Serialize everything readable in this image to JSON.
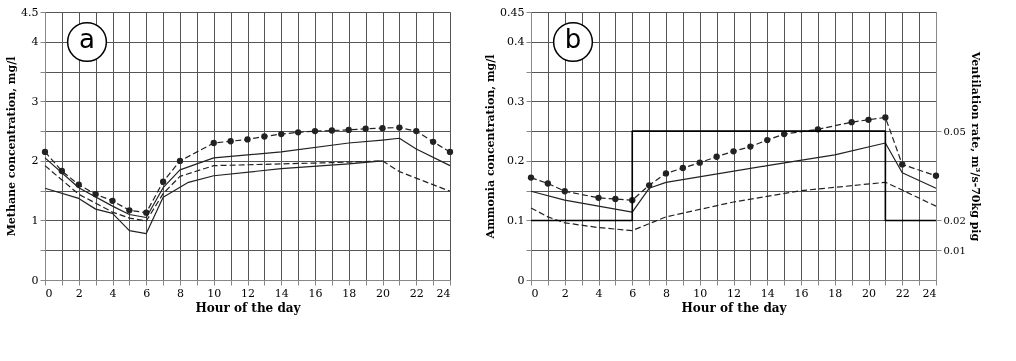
{
  "chart_data": [
    {
      "type": "line",
      "xlabel": "Hour of the day",
      "ylabel": "Methane concentration, mg/l",
      "annotations": [
        "a"
      ],
      "grid": true,
      "xlim": [
        0,
        24
      ],
      "ylim": [
        0,
        4.5
      ],
      "xticks": [
        0,
        {
          "value": 1,
          "label": null
        },
        2,
        {
          "value": 3,
          "label": null
        },
        4,
        {
          "value": 5,
          "label": null
        },
        6,
        {
          "value": 7,
          "label": null
        },
        8,
        {
          "value": 9,
          "label": null
        },
        10,
        {
          "value": 11,
          "label": null
        },
        12,
        {
          "value": 13,
          "label": null
        },
        14,
        {
          "value": 15,
          "label": null
        },
        16,
        {
          "value": 17,
          "label": null
        },
        18,
        {
          "value": 19,
          "label": null
        },
        20,
        {
          "value": 21,
          "label": null
        },
        22,
        {
          "value": 23,
          "label": null
        },
        24
      ],
      "yticks": [
        0,
        {
          "value": 0.5,
          "label": null
        },
        1,
        {
          "value": 1.5,
          "label": null
        },
        2,
        {
          "value": 2.5,
          "label": null
        },
        3,
        {
          "value": 3.5,
          "label": null
        },
        4,
        4.5
      ],
      "series": [
        {
          "color": "#222222",
          "marker": "circle",
          "line_style": "dashed",
          "x": [
            0,
            1,
            2,
            3,
            4,
            5,
            6,
            7,
            8,
            10,
            11,
            12,
            13,
            14,
            15,
            16,
            17,
            18,
            19,
            20,
            21,
            22,
            23,
            24
          ],
          "values": [
            2.15,
            1.83,
            1.6,
            1.44,
            1.33,
            1.17,
            1.13,
            1.65,
            2.0,
            2.3,
            2.33,
            2.36,
            2.41,
            2.45,
            2.48,
            2.5,
            2.51,
            2.52,
            2.54,
            2.55,
            2.56,
            2.5,
            2.32,
            2.15
          ]
        },
        {
          "color": "#222222",
          "marker": "none",
          "line_style": "solid",
          "x": [
            0,
            2,
            4,
            5,
            6,
            7,
            8,
            10,
            14,
            18,
            20,
            21,
            22,
            24
          ],
          "values": [
            2.05,
            1.55,
            1.24,
            1.1,
            1.05,
            1.55,
            1.85,
            2.05,
            2.15,
            2.3,
            2.35,
            2.38,
            2.2,
            1.92
          ]
        },
        {
          "color": "#222222",
          "marker": "none",
          "line_style": "dashed",
          "x": [
            0,
            2,
            4,
            5,
            6,
            7,
            8,
            10,
            14,
            17,
            20,
            21,
            24
          ],
          "values": [
            1.92,
            1.44,
            1.14,
            1.04,
            0.99,
            1.45,
            1.74,
            1.92,
            1.95,
            1.97,
            2.0,
            1.82,
            1.49
          ]
        },
        {
          "color": "#222222",
          "marker": "none",
          "line_style": "solid",
          "x": [
            0,
            2,
            3,
            4,
            5,
            6,
            7,
            8.5,
            10,
            14,
            18,
            20
          ],
          "values": [
            1.54,
            1.37,
            1.19,
            1.12,
            0.83,
            0.78,
            1.39,
            1.64,
            1.75,
            1.87,
            1.95,
            2.0
          ]
        }
      ]
    },
    {
      "type": "line",
      "xlabel": "Hour of the day",
      "ylabel": "Ammonia concentration, mg/l",
      "y2label": "Ventilation rate, m³/s-70kg pig",
      "annotations": [
        "b"
      ],
      "grid": true,
      "xlim": [
        0,
        24
      ],
      "ylim": [
        0,
        0.45
      ],
      "y2lim": [
        0,
        0.09
      ],
      "xticks": [
        0,
        {
          "value": 1,
          "label": null
        },
        2,
        {
          "value": 3,
          "label": null
        },
        4,
        {
          "value": 5,
          "label": null
        },
        6,
        {
          "value": 7,
          "label": null
        },
        8,
        {
          "value": 9,
          "label": null
        },
        10,
        {
          "value": 11,
          "label": null
        },
        12,
        {
          "value": 13,
          "label": null
        },
        14,
        {
          "value": 15,
          "label": null
        },
        16,
        {
          "value": 17,
          "label": null
        },
        18,
        {
          "value": 19,
          "label": null
        },
        20,
        {
          "value": 21,
          "label": null
        },
        22,
        {
          "value": 23,
          "label": null
        },
        24
      ],
      "yticks": [
        0,
        {
          "value": 0.05,
          "label": null
        },
        0.1,
        {
          "value": 0.15,
          "label": null
        },
        0.2,
        {
          "value": 0.25,
          "label": null
        },
        0.3,
        {
          "value": 0.35,
          "label": null
        },
        0.4,
        0.45
      ],
      "y2ticks": [
        0.01,
        0.02,
        0.05
      ],
      "series": [
        {
          "color": "#222222",
          "marker": "circle",
          "line_style": "dashed",
          "x": [
            0,
            1,
            2,
            4,
            5,
            6,
            7,
            8,
            9,
            10,
            11,
            12,
            13,
            14,
            15,
            17,
            19,
            20,
            21,
            22,
            24
          ],
          "values": [
            0.172,
            0.162,
            0.149,
            0.138,
            0.136,
            0.134,
            0.159,
            0.179,
            0.188,
            0.197,
            0.207,
            0.216,
            0.224,
            0.235,
            0.245,
            0.253,
            0.265,
            0.269,
            0.273,
            0.194,
            0.175
          ]
        },
        {
          "color": "#222222",
          "marker": "none",
          "line_style": "solid",
          "x": [
            0,
            2,
            6,
            7,
            8,
            14,
            18,
            21,
            22,
            24
          ],
          "values": [
            0.149,
            0.134,
            0.114,
            0.154,
            0.164,
            0.192,
            0.21,
            0.23,
            0.18,
            0.154
          ]
        },
        {
          "color": "#222222",
          "marker": "none",
          "line_style": "dashed",
          "x": [
            0,
            1,
            2,
            4,
            6,
            8,
            12,
            16,
            21,
            22,
            24
          ],
          "values": [
            0.121,
            0.106,
            0.096,
            0.088,
            0.083,
            0.106,
            0.131,
            0.15,
            0.164,
            0.151,
            0.124
          ]
        },
        {
          "type": "step",
          "axis": "y2",
          "color": "#000000",
          "marker": "none",
          "line_style": "solid",
          "x": [
            0,
            6,
            21,
            24
          ],
          "values": [
            0.02,
            0.05,
            0.02,
            0.02
          ]
        }
      ]
    }
  ]
}
